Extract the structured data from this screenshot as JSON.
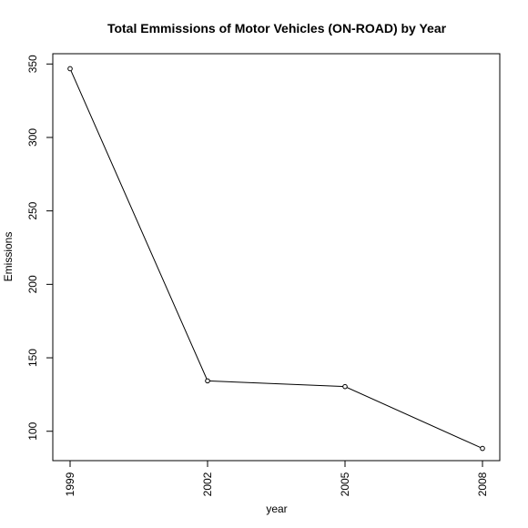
{
  "chart_data": {
    "type": "line",
    "title": "Total Emmissions of Motor Vehicles (ON-ROAD) by Year",
    "xlabel": "year",
    "ylabel": "Emissions",
    "x": [
      "1999",
      "2002",
      "2005",
      "2008"
    ],
    "series": [
      {
        "values": [
          346.8,
          134.3,
          130.4,
          88.3
        ]
      }
    ],
    "yticks": [
      "100",
      "150",
      "200",
      "250",
      "300",
      "350"
    ],
    "ylim": [
      80,
      357
    ],
    "grid": false,
    "markers": "open-circle",
    "colors": {
      "line": "#000000",
      "axis": "#000000",
      "background": "#ffffff"
    }
  }
}
